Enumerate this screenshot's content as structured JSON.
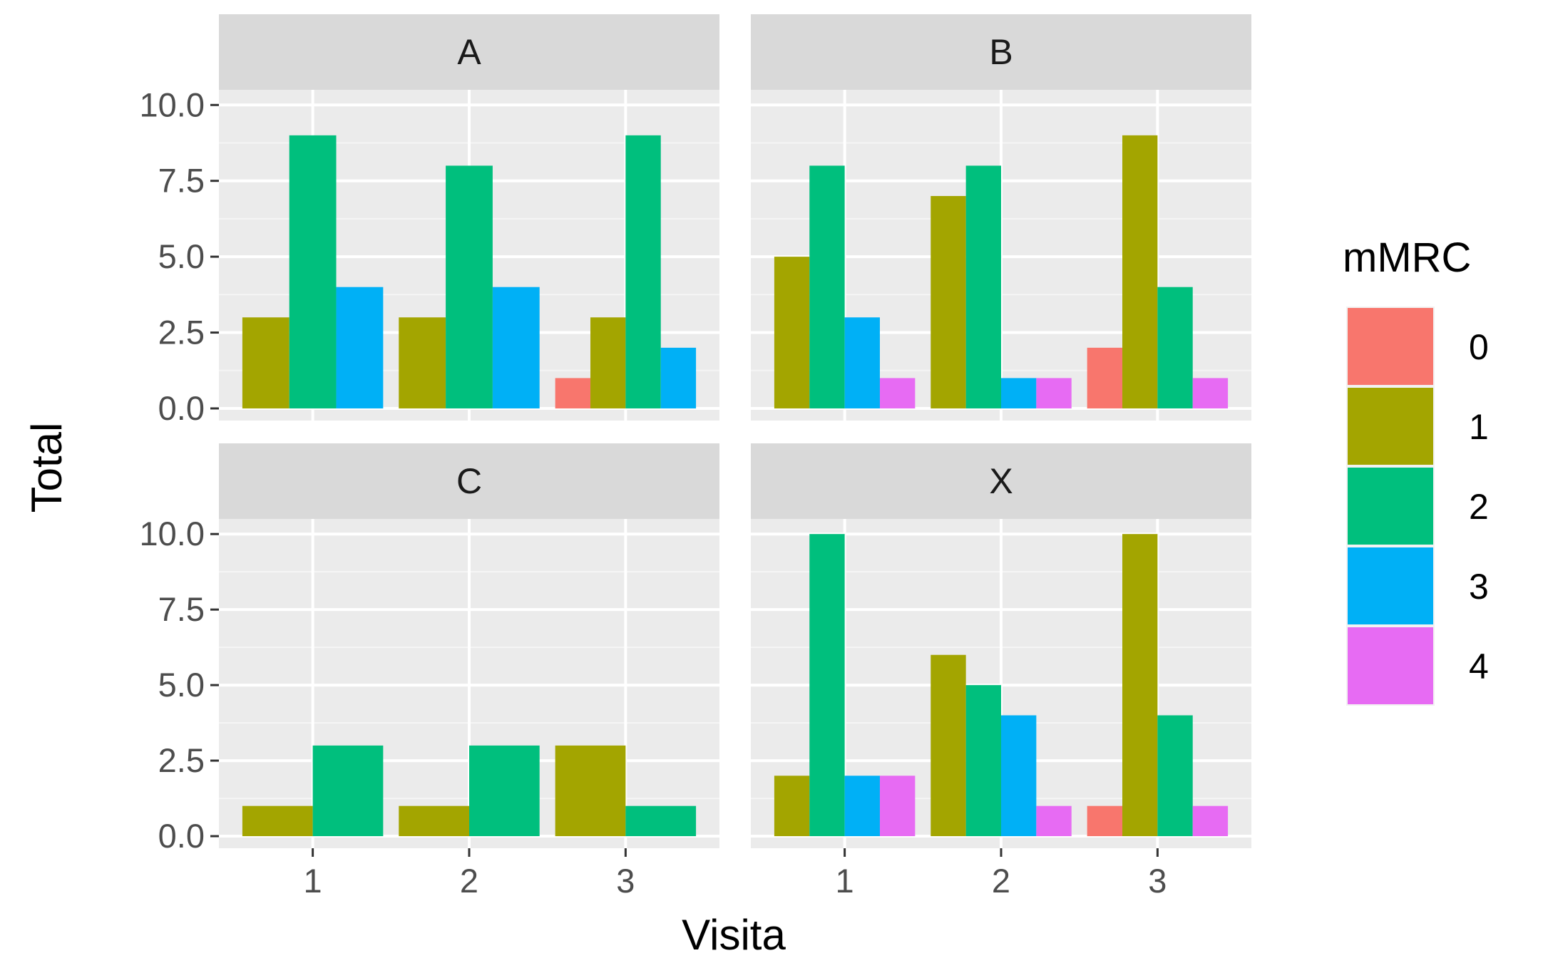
{
  "chart_data": {
    "type": "bar",
    "subtype": "faceted-dodged-bar",
    "xlabel": "Visita",
    "ylabel": "Total",
    "ylim": [
      -0.4,
      10.5
    ],
    "yticks": [
      "0.0",
      "2.5",
      "5.0",
      "7.5",
      "10.0"
    ],
    "ytick_values": [
      0,
      2.5,
      5,
      7.5,
      10
    ],
    "categories": [
      "1",
      "2",
      "3"
    ],
    "legend": {
      "title": "mMRC",
      "position": "right",
      "entries": [
        {
          "label": "0",
          "color": "#F8766D"
        },
        {
          "label": "1",
          "color": "#A3A500"
        },
        {
          "label": "2",
          "color": "#00BF7D"
        },
        {
          "label": "3",
          "color": "#00B0F6"
        },
        {
          "label": "4",
          "color": "#E76BF3"
        }
      ]
    },
    "panels": [
      {
        "name": "A",
        "groups": [
          {
            "visita": "1",
            "bars": [
              {
                "mMRC": "1",
                "value": 3
              },
              {
                "mMRC": "2",
                "value": 9
              },
              {
                "mMRC": "3",
                "value": 4
              }
            ]
          },
          {
            "visita": "2",
            "bars": [
              {
                "mMRC": "1",
                "value": 3
              },
              {
                "mMRC": "2",
                "value": 8
              },
              {
                "mMRC": "3",
                "value": 4
              }
            ]
          },
          {
            "visita": "3",
            "bars": [
              {
                "mMRC": "0",
                "value": 1
              },
              {
                "mMRC": "1",
                "value": 3
              },
              {
                "mMRC": "2",
                "value": 9
              },
              {
                "mMRC": "3",
                "value": 2
              }
            ]
          }
        ]
      },
      {
        "name": "B",
        "groups": [
          {
            "visita": "1",
            "bars": [
              {
                "mMRC": "1",
                "value": 5
              },
              {
                "mMRC": "2",
                "value": 8
              },
              {
                "mMRC": "3",
                "value": 3
              },
              {
                "mMRC": "4",
                "value": 1
              }
            ]
          },
          {
            "visita": "2",
            "bars": [
              {
                "mMRC": "1",
                "value": 7
              },
              {
                "mMRC": "2",
                "value": 8
              },
              {
                "mMRC": "3",
                "value": 1
              },
              {
                "mMRC": "4",
                "value": 1
              }
            ]
          },
          {
            "visita": "3",
            "bars": [
              {
                "mMRC": "0",
                "value": 2
              },
              {
                "mMRC": "1",
                "value": 9
              },
              {
                "mMRC": "2",
                "value": 4
              },
              {
                "mMRC": "4",
                "value": 1
              }
            ]
          }
        ]
      },
      {
        "name": "C",
        "groups": [
          {
            "visita": "1",
            "bars": [
              {
                "mMRC": "1",
                "value": 1
              },
              {
                "mMRC": "2",
                "value": 3
              }
            ]
          },
          {
            "visita": "2",
            "bars": [
              {
                "mMRC": "1",
                "value": 1
              },
              {
                "mMRC": "2",
                "value": 3
              }
            ]
          },
          {
            "visita": "3",
            "bars": [
              {
                "mMRC": "1",
                "value": 3
              },
              {
                "mMRC": "2",
                "value": 1
              }
            ]
          }
        ]
      },
      {
        "name": "X",
        "groups": [
          {
            "visita": "1",
            "bars": [
              {
                "mMRC": "1",
                "value": 2
              },
              {
                "mMRC": "2",
                "value": 10
              },
              {
                "mMRC": "3",
                "value": 2
              },
              {
                "mMRC": "4",
                "value": 2
              }
            ]
          },
          {
            "visita": "2",
            "bars": [
              {
                "mMRC": "1",
                "value": 6
              },
              {
                "mMRC": "2",
                "value": 5
              },
              {
                "mMRC": "3",
                "value": 4
              },
              {
                "mMRC": "4",
                "value": 1
              }
            ]
          },
          {
            "visita": "3",
            "bars": [
              {
                "mMRC": "0",
                "value": 1
              },
              {
                "mMRC": "1",
                "value": 10
              },
              {
                "mMRC": "2",
                "value": 4
              },
              {
                "mMRC": "4",
                "value": 1
              }
            ]
          }
        ]
      }
    ]
  }
}
